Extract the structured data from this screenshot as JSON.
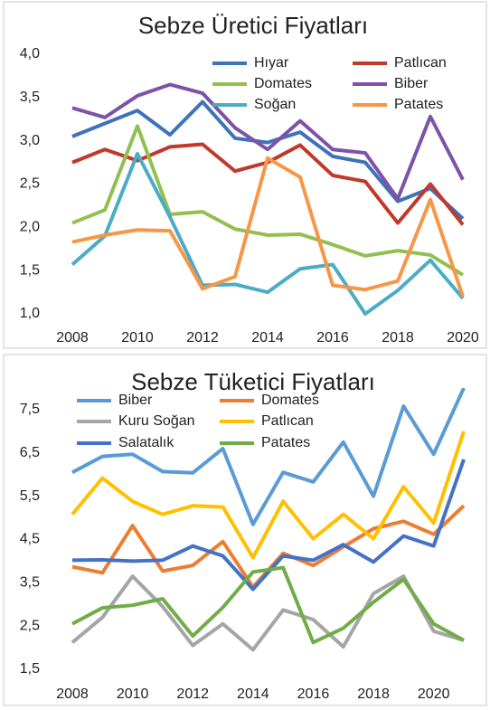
{
  "chart_data": [
    {
      "type": "line",
      "title": "Sebze Üretici Fiyatları",
      "x": [
        2008,
        2009,
        2010,
        2011,
        2012,
        2013,
        2014,
        2015,
        2016,
        2017,
        2018,
        2019,
        2020
      ],
      "xlim": [
        2008,
        2020
      ],
      "xticks": [
        2008,
        2010,
        2012,
        2014,
        2016,
        2018,
        2020
      ],
      "ylim": [
        1,
        4
      ],
      "yticks": [
        {
          "value": 1,
          "label": "1,0"
        },
        {
          "value": 1.5,
          "label": "1,5"
        },
        {
          "value": 2,
          "label": "2,0"
        },
        {
          "value": 2.5,
          "label": "2,5"
        },
        {
          "value": 3,
          "label": "3,0"
        },
        {
          "value": 3.5,
          "label": "3,5"
        },
        {
          "value": 4,
          "label": "4,0"
        }
      ],
      "grid": false,
      "series": [
        {
          "name": "Hıyar",
          "color": "#3f72b8",
          "values": [
            3.05,
            3.2,
            3.35,
            3.07,
            3.45,
            3.03,
            2.98,
            3.1,
            2.82,
            2.75,
            2.3,
            2.45,
            2.1
          ]
        },
        {
          "name": "Patlıcan",
          "color": "#c0392b",
          "values": [
            2.75,
            2.9,
            2.77,
            2.93,
            2.96,
            2.65,
            2.75,
            2.95,
            2.6,
            2.53,
            2.05,
            2.5,
            2.03
          ]
        },
        {
          "name": "Domates",
          "color": "#92c050",
          "values": [
            2.05,
            2.2,
            3.17,
            2.15,
            2.18,
            1.98,
            1.91,
            1.92,
            1.8,
            1.67,
            1.73,
            1.68,
            1.45
          ]
        },
        {
          "name": "Biber",
          "color": "#7d52a8",
          "values": [
            3.38,
            3.27,
            3.52,
            3.65,
            3.55,
            3.15,
            2.9,
            3.23,
            2.9,
            2.86,
            2.33,
            3.28,
            2.55
          ]
        },
        {
          "name": "Soğan",
          "color": "#4bacc6",
          "values": [
            1.57,
            1.9,
            2.85,
            2.12,
            1.33,
            1.34,
            1.25,
            1.52,
            1.57,
            1.0,
            1.27,
            1.62,
            1.18
          ]
        },
        {
          "name": "Patates",
          "color": "#f79646",
          "values": [
            1.83,
            1.91,
            1.97,
            1.96,
            1.29,
            1.43,
            2.8,
            2.58,
            1.33,
            1.28,
            1.38,
            2.32,
            1.2
          ]
        }
      ]
    },
    {
      "type": "line",
      "title": "Sebze Tüketici Fiyatları",
      "x": [
        2008,
        2009,
        2010,
        2011,
        2012,
        2013,
        2014,
        2015,
        2016,
        2017,
        2018,
        2019,
        2020,
        2021
      ],
      "xlim": [
        2008,
        2021
      ],
      "xticks": [
        2008,
        2010,
        2012,
        2014,
        2016,
        2018,
        2020
      ],
      "ylim": [
        1.5,
        8
      ],
      "yticks": [
        {
          "value": 1.5,
          "label": "1,5"
        },
        {
          "value": 2.5,
          "label": "2,5"
        },
        {
          "value": 3.5,
          "label": "3,5"
        },
        {
          "value": 4.5,
          "label": "4,5"
        },
        {
          "value": 5.5,
          "label": "5,5"
        },
        {
          "value": 6.5,
          "label": "6,5"
        },
        {
          "value": 7.5,
          "label": "7,5"
        }
      ],
      "grid": false,
      "series": [
        {
          "name": "Biber",
          "color": "#5b9bd5",
          "values": [
            6.05,
            6.42,
            6.47,
            6.07,
            6.04,
            6.6,
            4.85,
            6.05,
            5.83,
            6.75,
            5.5,
            7.58,
            6.47,
            8.0
          ]
        },
        {
          "name": "Domates",
          "color": "#ed7d31",
          "values": [
            3.87,
            3.73,
            4.82,
            3.77,
            3.9,
            4.45,
            3.4,
            4.18,
            3.9,
            4.33,
            4.75,
            4.92,
            4.62,
            5.28
          ]
        },
        {
          "name": "Kuru Soğan",
          "color": "#a5a5a5",
          "values": [
            2.12,
            2.7,
            3.65,
            2.95,
            2.05,
            2.55,
            1.95,
            2.87,
            2.65,
            2.02,
            3.25,
            3.65,
            2.38,
            2.17
          ]
        },
        {
          "name": "Patlıcan",
          "color": "#ffc000",
          "values": [
            5.08,
            5.92,
            5.38,
            5.08,
            5.28,
            5.25,
            4.08,
            5.38,
            4.52,
            5.08,
            4.52,
            5.72,
            4.88,
            7.0
          ]
        },
        {
          "name": "Salatalık",
          "color": "#4472c4",
          "values": [
            4.02,
            4.03,
            4.0,
            4.02,
            4.35,
            4.12,
            3.35,
            4.12,
            4.02,
            4.38,
            3.98,
            4.58,
            4.35,
            6.35
          ]
        },
        {
          "name": "Patates",
          "color": "#70ad47",
          "values": [
            2.55,
            2.92,
            2.98,
            3.13,
            2.27,
            2.93,
            3.75,
            3.85,
            2.12,
            2.45,
            3.05,
            3.58,
            2.55,
            2.17
          ]
        }
      ]
    }
  ]
}
